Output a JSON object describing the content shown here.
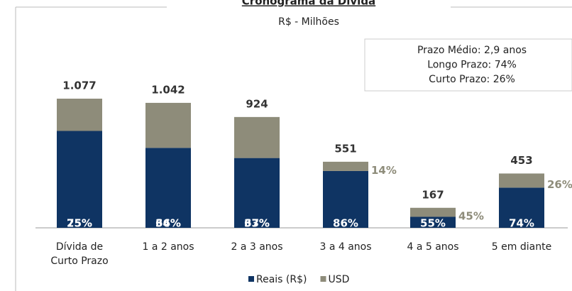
{
  "chart_data": {
    "type": "bar",
    "stacked": true,
    "title": "Cronograma da Dívida",
    "subtitle": "R$ - Milhões",
    "annotations": [
      "Prazo Médio: 2,9 anos",
      "Longo Prazo: 74%",
      "Curto Prazo: 26%"
    ],
    "categories": [
      "Dívida de Curto Prazo",
      "1 a 2 anos",
      "2 a 3 anos",
      "3 a 4 anos",
      "4 a 5 anos",
      "5 em diante"
    ],
    "totals": {
      "values": [
        1077,
        1042,
        924,
        551,
        167,
        453
      ],
      "value_labels": [
        "1.077",
        "1.042",
        "924",
        "551",
        "167",
        "453"
      ]
    },
    "series": [
      {
        "name": "Reais (R$)",
        "color": "#0f3463",
        "values": [
          75,
          64,
          63,
          86,
          55,
          74
        ],
        "value_labels": [
          "75%",
          "64%",
          "63%",
          "86%",
          "55%",
          "74%"
        ]
      },
      {
        "name": "USD",
        "color": "#8e8c7a",
        "values": [
          25,
          36,
          37,
          14,
          45,
          26
        ],
        "value_labels": [
          "25%",
          "36%",
          "37%",
          "14%",
          "45%",
          "26%"
        ]
      }
    ]
  }
}
